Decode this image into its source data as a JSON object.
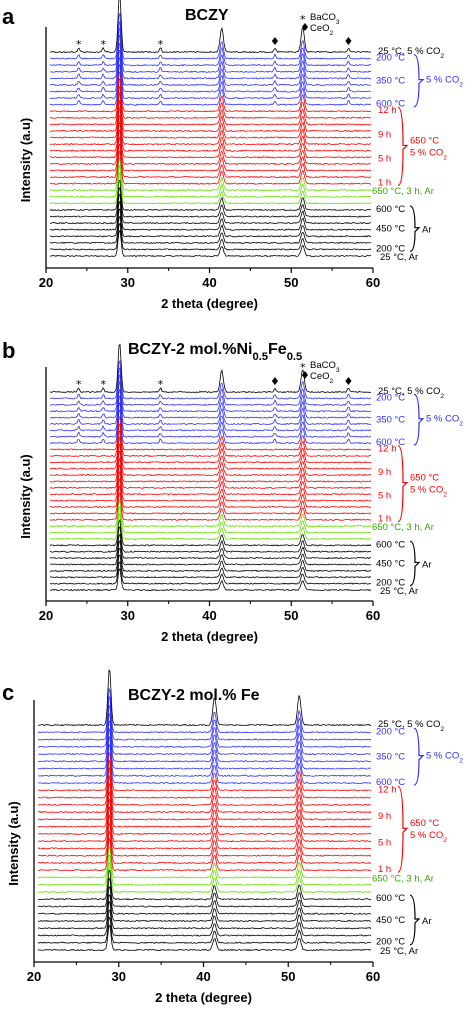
{
  "chart_data": [
    {
      "panel": "a",
      "type": "line",
      "title": "BCZY",
      "xlabel": "2 theta (degree)",
      "ylabel": "Intensity (a.u)",
      "xlim": [
        20,
        60
      ],
      "x_ticks": [
        20,
        30,
        40,
        50,
        60
      ],
      "x_tick_labels": [
        "20",
        "30",
        "40",
        "50",
        "60"
      ],
      "legend": [
        {
          "symbol": "*",
          "label": "BaCO₃"
        },
        {
          "symbol": "♦",
          "label": "CeO₂"
        }
      ],
      "peaks_2theta": [
        29.0,
        41.5,
        51.4
      ],
      "impurity_peaks": [
        {
          "symbol": "*",
          "x": 24.0
        },
        {
          "symbol": "*",
          "x": 27.0
        },
        {
          "symbol": "*",
          "x": 34.0
        },
        {
          "symbol": "♦",
          "x": 48.0
        },
        {
          "symbol": "♦",
          "x": 57.0
        }
      ],
      "series_groups": [
        {
          "group": "Ar",
          "color": "#000000",
          "count": 8
        },
        {
          "group": "650 °C, 3 h, Ar",
          "color": "#66e000",
          "count": 3
        },
        {
          "group": "650 °C 5 % CO₂",
          "color": "#ff0000",
          "count": 12
        },
        {
          "group": "5 % CO₂",
          "color": "#3030ff",
          "count": 8
        },
        {
          "group": "25 °C, 5 % CO₂",
          "color": "#000000",
          "count": 1
        }
      ],
      "annotations": {
        "top": "25 °C, 5 % CO₂",
        "blue": [
          "200 °C",
          "350 °C",
          "600 °C"
        ],
        "blue_label": "5 % CO₂",
        "red": [
          "12 h",
          "9 h",
          "5 h",
          "1 h"
        ],
        "red_label_1": "650 °C",
        "red_label_2": "5 % CO₂",
        "green": "650 °C, 3 h, Ar",
        "black": [
          "600 °C",
          "450 °C",
          "200 °C"
        ],
        "black_label": "Ar",
        "bottom": "25 °C, Ar"
      }
    },
    {
      "panel": "b",
      "type": "line",
      "title": "BCZY-2 mol.%Ni₀.₅Fe₀.₅",
      "xlabel": "2 theta (degree)",
      "ylabel": "Intensity (a.u)",
      "xlim": [
        20,
        60
      ],
      "x_ticks": [
        20,
        30,
        40,
        50,
        60
      ],
      "x_tick_labels": [
        "20",
        "30",
        "40",
        "50",
        "60"
      ],
      "legend": [
        {
          "symbol": "*",
          "label": "BaCO₃"
        },
        {
          "symbol": "♦",
          "label": "CeO₂"
        }
      ],
      "peaks_2theta": [
        29.0,
        41.5,
        51.4
      ],
      "impurity_peaks": [
        {
          "symbol": "*",
          "x": 24.0
        },
        {
          "symbol": "*",
          "x": 27.0
        },
        {
          "symbol": "*",
          "x": 34.0
        },
        {
          "symbol": "♦",
          "x": 48.0
        },
        {
          "symbol": "♦",
          "x": 57.0
        }
      ],
      "series_groups": [
        {
          "group": "Ar",
          "color": "#000000",
          "count": 8
        },
        {
          "group": "650 °C, 3 h, Ar",
          "color": "#66e000",
          "count": 3
        },
        {
          "group": "650 °C 5 % CO₂",
          "color": "#ff0000",
          "count": 12
        },
        {
          "group": "5 % CO₂",
          "color": "#3030ff",
          "count": 8
        },
        {
          "group": "25 °C, 5 % CO₂",
          "color": "#000000",
          "count": 1
        }
      ],
      "annotations": {
        "top": "25 °C, 5 % CO₂",
        "blue": [
          "200 °C",
          "350 °C",
          "600 °C"
        ],
        "blue_label": "5 % CO₂",
        "red": [
          "12 h",
          "9 h",
          "5 h",
          "1 h"
        ],
        "red_label_1": "650 °C",
        "red_label_2": "5 % CO₂",
        "green": "650 °C, 3 h, Ar",
        "black": [
          "600 °C",
          "450 °C",
          "200 °C"
        ],
        "black_label": "Ar",
        "bottom": "25 °C, Ar"
      }
    },
    {
      "panel": "c",
      "type": "line",
      "title": "BCZY-2 mol.% Fe",
      "xlabel": "2 theta (degree)",
      "ylabel": "Intensity (a.u)",
      "xlim": [
        20,
        60
      ],
      "x_ticks": [
        20,
        30,
        40,
        50,
        60
      ],
      "x_tick_labels": [
        "20",
        "30",
        "40",
        "50",
        "60"
      ],
      "legend": [],
      "peaks_2theta": [
        28.9,
        41.3,
        51.3
      ],
      "impurity_peaks": [],
      "series_groups": [
        {
          "group": "Ar",
          "color": "#000000",
          "count": 8
        },
        {
          "group": "650 °C, 3 h, Ar",
          "color": "#66e000",
          "count": 3
        },
        {
          "group": "650 °C 5 % CO₂",
          "color": "#ff0000",
          "count": 12
        },
        {
          "group": "5 % CO₂",
          "color": "#3030ff",
          "count": 8
        },
        {
          "group": "25 °C, 5 % CO₂",
          "color": "#000000",
          "count": 1
        }
      ],
      "annotations": {
        "top": "25 °C, 5 % CO₂",
        "blue": [
          "200 °C",
          "350 °C",
          "600 °C"
        ],
        "blue_label": "5 % CO₂",
        "red": [
          "12 h",
          "9 h",
          "5 h",
          "1 h"
        ],
        "red_label_1": "650 °C",
        "red_label_2": "5 % CO₂",
        "green": "650 °C, 3 h, Ar",
        "black": [
          "600 °C",
          "450 °C",
          "200 °C"
        ],
        "black_label": "Ar",
        "bottom": "25 °C, Ar"
      }
    }
  ]
}
